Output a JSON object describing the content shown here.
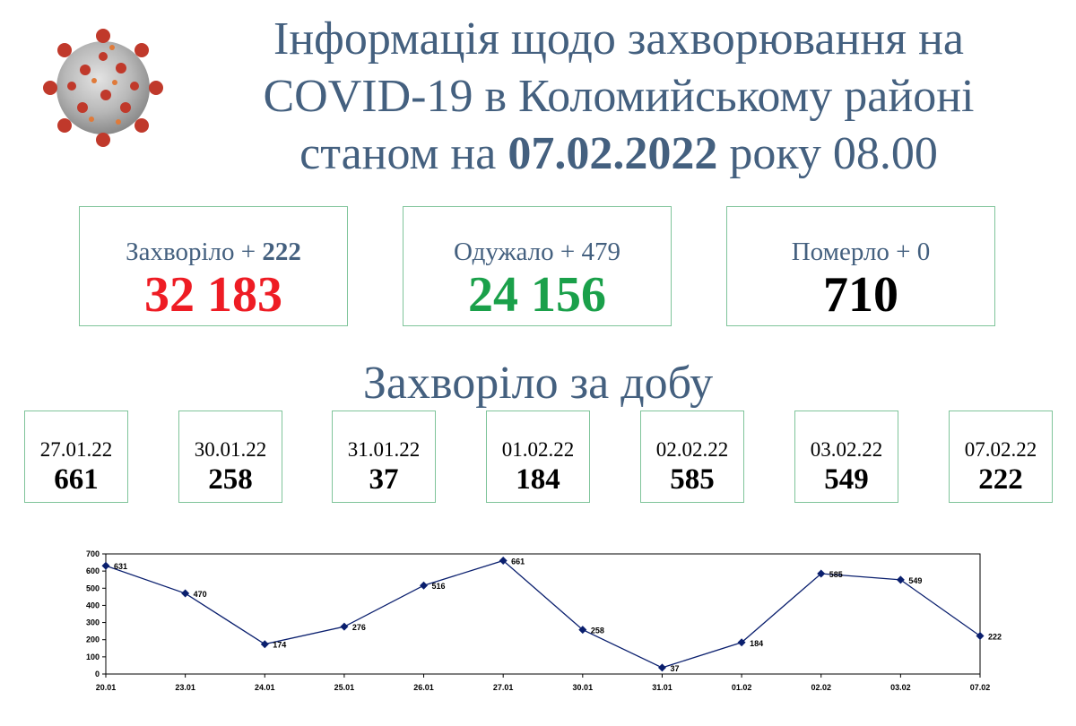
{
  "title": {
    "line1": "Інформація щодо захворювання на",
    "line2": "COVID-19 в Коломийському районі",
    "line3_prefix": "станом на ",
    "line3_date": "07.02.2022",
    "line3_suffix": " року 08.00"
  },
  "stats": [
    {
      "label": "Захворіло + ",
      "delta": "222",
      "value": "32 183",
      "color": "#ee1c24"
    },
    {
      "label": "Одужало + ",
      "delta": "479",
      "value": "24 156",
      "color": "#1aa04a"
    },
    {
      "label": "Померло + ",
      "delta": "0",
      "value": "710",
      "color": "#000000"
    }
  ],
  "daily_title": "Захворіло за добу",
  "daily": [
    {
      "date": "27.01.22",
      "value": "661"
    },
    {
      "date": "30.01.22",
      "value": "258"
    },
    {
      "date": "31.01.22",
      "value": "37"
    },
    {
      "date": "01.02.22",
      "value": "184"
    },
    {
      "date": "02.02.22",
      "value": "585"
    },
    {
      "date": "03.02.22",
      "value": "549"
    },
    {
      "date": "07.02.22",
      "value": "222"
    }
  ],
  "chart_data": {
    "type": "line",
    "categories": [
      "20.01",
      "23.01",
      "24.01",
      "25.01",
      "26.01",
      "27.01",
      "30.01",
      "31.01",
      "01.02",
      "02.02",
      "03.02",
      "07.02"
    ],
    "values": [
      631,
      470,
      174,
      276,
      516,
      661,
      258,
      37,
      184,
      585,
      549,
      222
    ],
    "title": "",
    "xlabel": "",
    "ylabel": "",
    "ylim": [
      0,
      700
    ],
    "yticks": [
      0,
      100,
      200,
      300,
      400,
      500,
      600,
      700
    ],
    "grid": false,
    "line_color": "#0a1f6e"
  }
}
